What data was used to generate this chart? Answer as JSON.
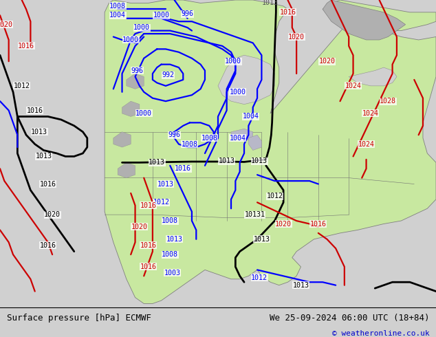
{
  "title_left": "Surface pressure [hPa] ECMWF",
  "title_right": "We 25-09-2024 06:00 UTC (18+84)",
  "copyright": "© weatheronline.co.uk",
  "bg_color": "#d0d0d0",
  "land_color": "#c8e8a0",
  "water_color": "#d0d0d0",
  "rocky_color": "#b0b0b0",
  "footer_color": "#ffffff",
  "fig_width": 6.34,
  "fig_height": 4.9,
  "dpi": 100,
  "title_fontsize": 9.0,
  "copyright_fontsize": 8.0,
  "label_fontsize": 7.2
}
